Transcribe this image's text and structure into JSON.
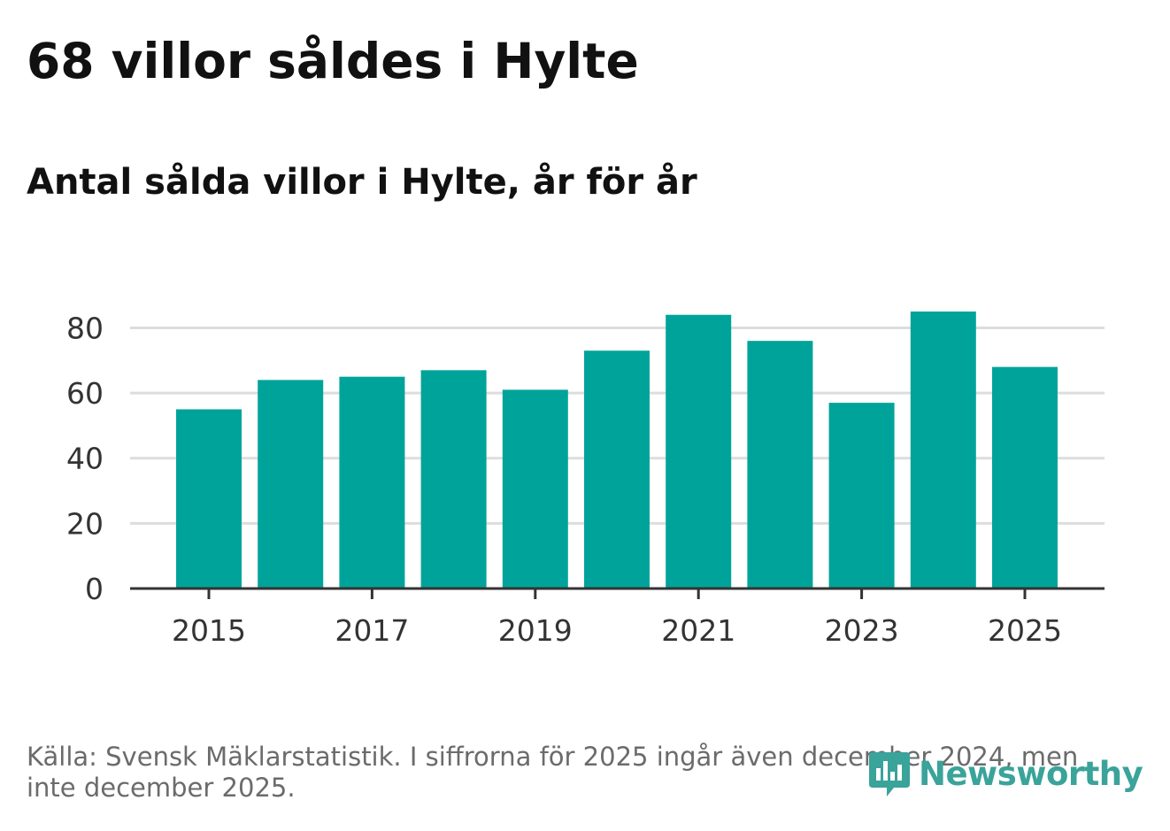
{
  "header": {
    "title": "68 villor såldes i Hylte",
    "subtitle": "Antal sålda villor i Hylte, år för år"
  },
  "footer": {
    "source": "Källa: Svensk Mäklarstatistik. I siffrorna för 2025 ingår även december 2024, men inte december 2025.",
    "brand": "Newsworthy"
  },
  "colors": {
    "bar": "#00a39a",
    "grid": "#dddddd",
    "axis": "#333333",
    "brand": "#3aa39a"
  },
  "chart_data": {
    "type": "bar",
    "title": "Antal sålda villor i Hylte, år för år",
    "xlabel": "",
    "ylabel": "",
    "categories": [
      "2015",
      "2016",
      "2017",
      "2018",
      "2019",
      "2020",
      "2021",
      "2022",
      "2023",
      "2024",
      "2025"
    ],
    "values": [
      55,
      64,
      65,
      67,
      61,
      73,
      84,
      76,
      57,
      85,
      68
    ],
    "x_tick_labels": [
      "2015",
      "2017",
      "2019",
      "2021",
      "2023",
      "2025"
    ],
    "y_ticks": [
      0,
      20,
      40,
      60,
      80
    ],
    "ylim": [
      0,
      88
    ],
    "grid": true,
    "legend": "none"
  }
}
